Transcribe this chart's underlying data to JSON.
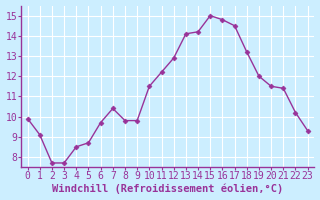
{
  "x": [
    0,
    1,
    2,
    3,
    4,
    5,
    6,
    7,
    8,
    9,
    10,
    11,
    12,
    13,
    14,
    15,
    16,
    17,
    18,
    19,
    20,
    21,
    22,
    23
  ],
  "y": [
    9.9,
    9.1,
    7.7,
    7.7,
    8.5,
    8.7,
    9.7,
    10.4,
    9.8,
    9.8,
    11.5,
    12.2,
    12.9,
    14.1,
    14.2,
    15.0,
    14.8,
    14.5,
    13.2,
    12.0,
    11.5,
    11.4,
    10.2,
    9.3
  ],
  "line_color": "#993399",
  "marker": "D",
  "markersize": 2.5,
  "linewidth": 1.0,
  "bg_color": "#cceeff",
  "grid_color": "#ffffff",
  "xlabel": "Windchill (Refroidissement éolien,°C)",
  "xlabel_fontsize": 7.5,
  "tick_fontsize": 7,
  "ylim": [
    7.5,
    15.5
  ],
  "xlim": [
    -0.5,
    23.5
  ],
  "yticks": [
    8,
    9,
    10,
    11,
    12,
    13,
    14,
    15
  ],
  "xticks": [
    0,
    1,
    2,
    3,
    4,
    5,
    6,
    7,
    8,
    9,
    10,
    11,
    12,
    13,
    14,
    15,
    16,
    17,
    18,
    19,
    20,
    21,
    22,
    23
  ],
  "spine_color": "#993399",
  "label_color": "#993399"
}
